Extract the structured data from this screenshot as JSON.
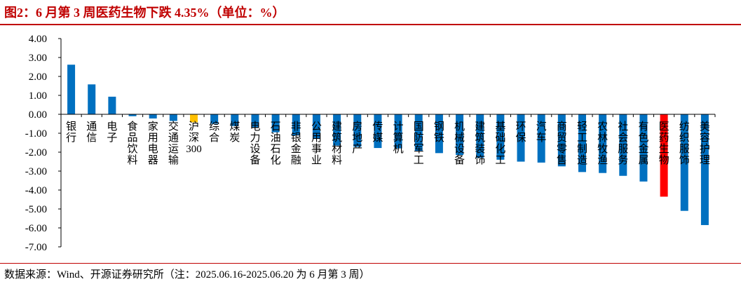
{
  "title": "图2：6 月第 3 周医药生物下跌 4.35%（单位：%）",
  "source": "数据来源：Wind、开源证券研究所（注：2025.06.16-2025.06.20 为 6 月第 3 周）",
  "colors": {
    "default": "#0070c0",
    "benchmark": "#ffc000",
    "highlight": "#ff0000",
    "accent": "#c00000"
  },
  "chart_data": {
    "type": "bar",
    "title": "",
    "xlabel": "",
    "ylabel": "",
    "ylim": [
      -7,
      4
    ],
    "yticks": [
      "4.00",
      "3.00",
      "2.00",
      "1.00",
      "0.00",
      "-1.00",
      "-2.00",
      "-3.00",
      "-4.00",
      "-5.00",
      "-6.00",
      "-7.00"
    ],
    "grid": false,
    "legend": "none",
    "categories": [
      "银行",
      "通信",
      "电子",
      "食品饮料",
      "家用电器",
      "交通运输",
      "沪深300",
      "综合",
      "煤炭",
      "电力设备",
      "石油石化",
      "非银金融",
      "公用事业",
      "建筑材料",
      "房地产",
      "传媒",
      "计算机",
      "国防军工",
      "钢铁",
      "机械设备",
      "建筑装饰",
      "基础化工",
      "环保",
      "汽车",
      "商贸零售",
      "轻工制造",
      "农林牧渔",
      "社会服务",
      "有色金属",
      "医药生物",
      "纺织服饰",
      "美容护理"
    ],
    "values": [
      2.62,
      1.58,
      0.93,
      -0.1,
      -0.22,
      -0.35,
      -0.42,
      -0.5,
      -0.62,
      -0.72,
      -0.95,
      -1.12,
      -1.3,
      -1.65,
      -1.72,
      -1.78,
      -1.8,
      -1.95,
      -2.05,
      -2.15,
      -2.3,
      -2.4,
      -2.5,
      -2.55,
      -2.75,
      -3.05,
      -3.1,
      -3.25,
      -3.55,
      -4.35,
      -5.1,
      -5.85
    ],
    "highlight_index": 29,
    "benchmark_index": 6
  }
}
